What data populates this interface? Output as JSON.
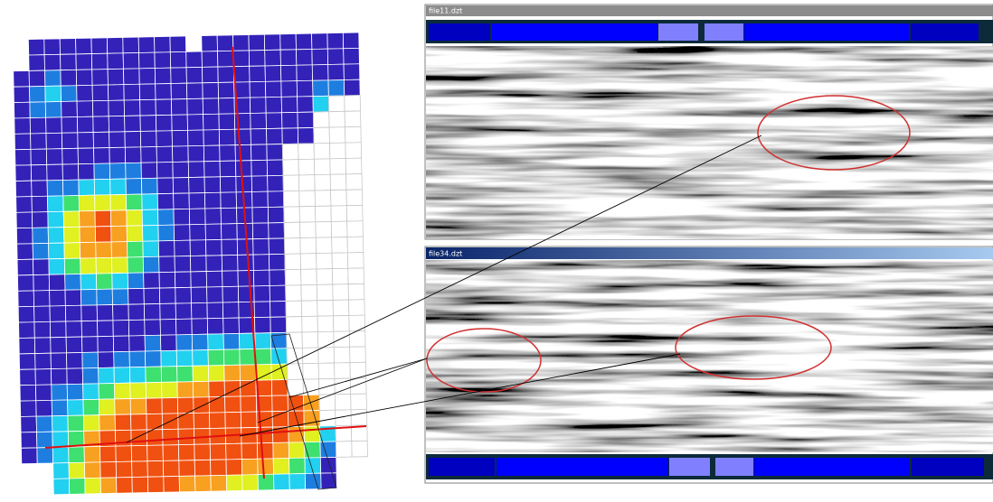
{
  "windows": [
    {
      "title": "file11.dzt"
    },
    {
      "title": "file34.dzt"
    }
  ]
}
